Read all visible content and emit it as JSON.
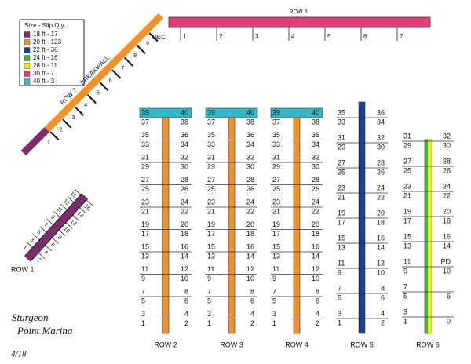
{
  "legend": {
    "title": "Size - Slip Qty.",
    "items": [
      {
        "label": "18 ft - 17",
        "color": "#7b2d6e"
      },
      {
        "label": "20 ft - 123",
        "color": "#f0922b"
      },
      {
        "label": "22 ft - 36",
        "color": "#1f3f8f"
      },
      {
        "label": "24 ft - 16",
        "color": "#4caf3c"
      },
      {
        "label": "28 ft - 11",
        "color": "#f4f000"
      },
      {
        "label": "30 ft - 7",
        "color": "#e0407a"
      },
      {
        "label": "40 ft - 3",
        "color": "#35b8c8"
      }
    ]
  },
  "row8": {
    "label": "ROW 8",
    "slips": [
      "1",
      "2",
      "3",
      "4",
      "5",
      "6",
      "7"
    ]
  },
  "row7": {
    "label": "ROW 7",
    "wall": "BREAKWALL",
    "end": "DEC",
    "slips": [
      "1",
      "2",
      "3",
      "4",
      "5",
      "6",
      "7",
      "8",
      "9"
    ]
  },
  "row1": {
    "label": "ROW 1",
    "left": [
      "1",
      "3",
      "5",
      "7",
      "9",
      "11",
      "13",
      "15"
    ],
    "right": [
      "2",
      "4",
      "6",
      "8",
      "10",
      "12",
      "14",
      "16"
    ]
  },
  "rows": [
    {
      "label": "ROW 2",
      "left": [
        "39",
        "37",
        "35",
        "33",
        "31",
        "29",
        "27",
        "25",
        "23",
        "21",
        "19",
        "17",
        "15",
        "13",
        "11",
        "9",
        "7",
        "5",
        "3",
        "1"
      ],
      "right": [
        "40",
        "38",
        "36",
        "34",
        "32",
        "30",
        "28",
        "26",
        "24",
        "22",
        "20",
        "18",
        "16",
        "14",
        "12",
        "10",
        "8",
        "6",
        "4",
        "2"
      ]
    },
    {
      "label": "ROW 3",
      "left": [
        "39",
        "37",
        "35",
        "33",
        "31",
        "29",
        "27",
        "25",
        "23",
        "21",
        "19",
        "17",
        "15",
        "13",
        "11",
        "9",
        "7",
        "5",
        "3",
        "1"
      ],
      "right": [
        "40",
        "38",
        "36",
        "34",
        "32",
        "30",
        "28",
        "26",
        "24",
        "22",
        "20",
        "18",
        "16",
        "14",
        "12",
        "10",
        "8",
        "6",
        "4",
        "2"
      ]
    },
    {
      "label": "ROW 4",
      "left": [
        "39",
        "37",
        "35",
        "33",
        "31",
        "29",
        "27",
        "25",
        "23",
        "21",
        "19",
        "17",
        "15",
        "13",
        "11",
        "9",
        "7",
        "5",
        "3",
        "1"
      ],
      "right": [
        "40",
        "38",
        "36",
        "34",
        "32",
        "30",
        "28",
        "26",
        "24",
        "22",
        "20",
        "18",
        "16",
        "14",
        "12",
        "10",
        "8",
        "6",
        "4",
        "2"
      ]
    },
    {
      "label": "ROW 5",
      "left": [
        "35",
        "33",
        "31",
        "29",
        "27",
        "25",
        "23",
        "21",
        "19",
        "17",
        "15",
        "13",
        "11",
        "9",
        "7",
        "5",
        "3",
        "1"
      ],
      "right": [
        "36",
        "34",
        "32",
        "30",
        "28",
        "26",
        "24",
        "22",
        "20",
        "18",
        "16",
        "14",
        "12",
        "10",
        "8",
        "6",
        "4",
        "2"
      ]
    },
    {
      "label": "ROW 6",
      "left": [
        "31",
        "29",
        "27",
        "25",
        "23",
        "21",
        "19",
        "17",
        "15",
        "13",
        "11",
        "9",
        "7",
        "5",
        "3",
        "1"
      ],
      "right": [
        "32",
        "30",
        "28",
        "26",
        "24",
        "22",
        "20",
        "18",
        "16",
        "14",
        "PD",
        "10",
        null,
        "6",
        null,
        "0"
      ]
    }
  ],
  "footer": {
    "line1": "Sturgeon",
    "line2": "Point Marina",
    "date": "4/18"
  }
}
